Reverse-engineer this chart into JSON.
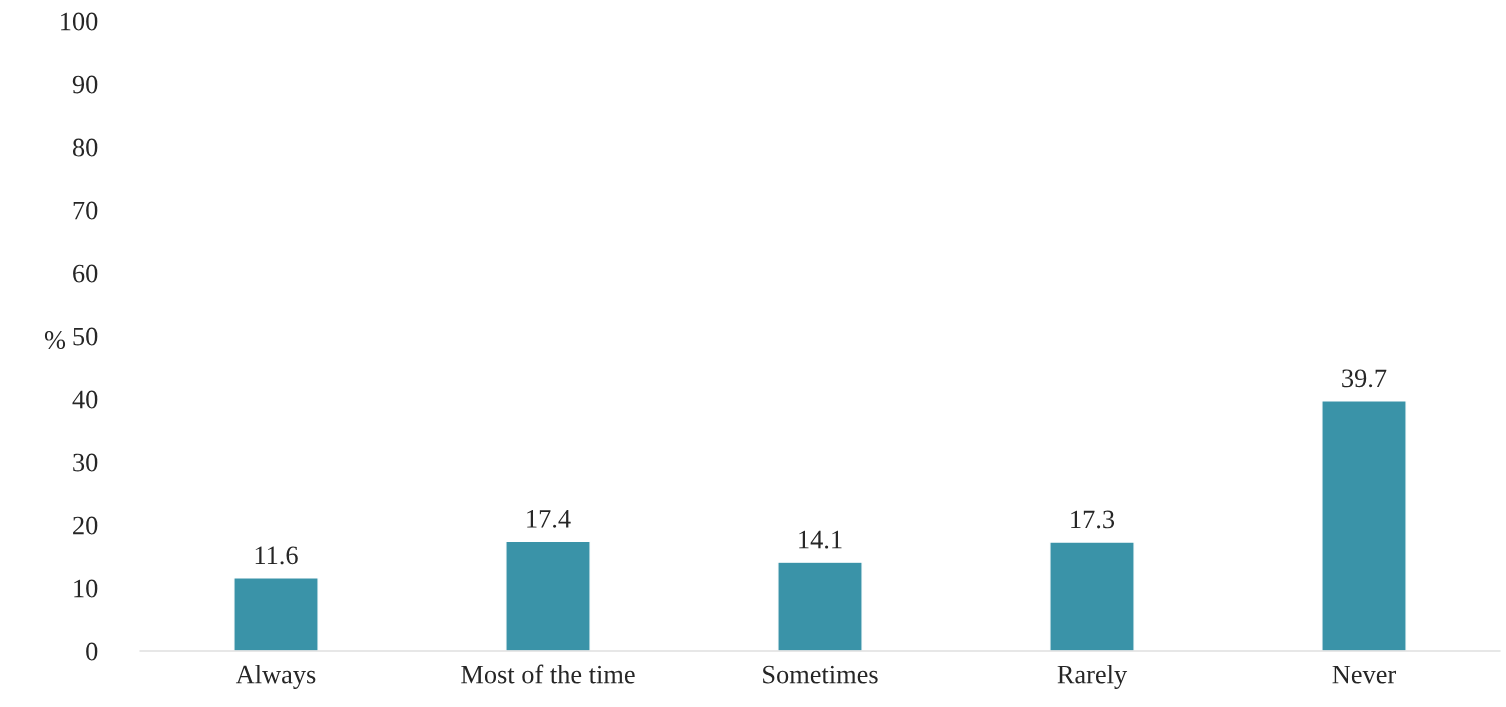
{
  "chart_data": {
    "type": "bar",
    "ylabel": "%",
    "categories": [
      "Always",
      "Most of the time",
      "Sometimes",
      "Rarely",
      "Never"
    ],
    "values": [
      11.6,
      17.4,
      14.1,
      17.3,
      39.7
    ],
    "color": "#3a93a8",
    "ylim": [
      0,
      100
    ],
    "yticks": [
      0,
      10,
      20,
      30,
      40,
      50,
      60,
      70,
      80,
      90,
      100
    ],
    "data_labels": true,
    "grid": false,
    "legend": false
  }
}
